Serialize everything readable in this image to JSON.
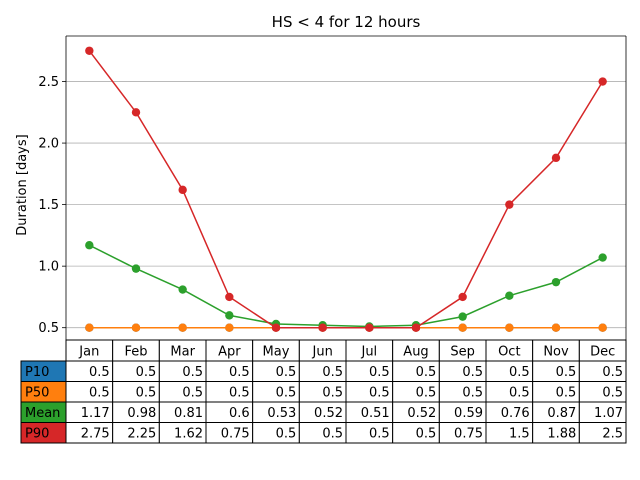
{
  "chart_data": {
    "type": "line",
    "title": "HS < 4 for 12 hours",
    "xlabel": "",
    "ylabel": "Duration [days]",
    "categories": [
      "Jan",
      "Feb",
      "Mar",
      "Apr",
      "May",
      "Jun",
      "Jul",
      "Aug",
      "Sep",
      "Oct",
      "Nov",
      "Dec"
    ],
    "ylim": [
      0.4,
      2.87
    ],
    "yticks": [
      0.5,
      1.0,
      1.5,
      2.0,
      2.5
    ],
    "ytick_labels": [
      "0.5",
      "1.0",
      "1.5",
      "2.0",
      "2.5"
    ],
    "grid": "horizontal",
    "legend": "table-below",
    "series": [
      {
        "name": "P10",
        "color": "#1f77b4",
        "values": [
          0.5,
          0.5,
          0.5,
          0.5,
          0.5,
          0.5,
          0.5,
          0.5,
          0.5,
          0.5,
          0.5,
          0.5
        ],
        "labels": [
          "0.5",
          "0.5",
          "0.5",
          "0.5",
          "0.5",
          "0.5",
          "0.5",
          "0.5",
          "0.5",
          "0.5",
          "0.5",
          "0.5"
        ]
      },
      {
        "name": "P50",
        "color": "#ff7f0e",
        "values": [
          0.5,
          0.5,
          0.5,
          0.5,
          0.5,
          0.5,
          0.5,
          0.5,
          0.5,
          0.5,
          0.5,
          0.5
        ],
        "labels": [
          "0.5",
          "0.5",
          "0.5",
          "0.5",
          "0.5",
          "0.5",
          "0.5",
          "0.5",
          "0.5",
          "0.5",
          "0.5",
          "0.5"
        ]
      },
      {
        "name": "Mean",
        "color": "#2ca02c",
        "values": [
          1.17,
          0.98,
          0.81,
          0.6,
          0.53,
          0.52,
          0.51,
          0.52,
          0.59,
          0.76,
          0.87,
          1.07
        ],
        "labels": [
          "1.17",
          "0.98",
          "0.81",
          "0.6",
          "0.53",
          "0.52",
          "0.51",
          "0.52",
          "0.59",
          "0.76",
          "0.87",
          "1.07"
        ]
      },
      {
        "name": "P90",
        "color": "#d62728",
        "values": [
          2.75,
          2.25,
          1.62,
          0.75,
          0.5,
          0.5,
          0.5,
          0.5,
          0.75,
          1.5,
          1.88,
          2.5
        ],
        "labels": [
          "2.75",
          "2.25",
          "1.62",
          "0.75",
          "0.5",
          "0.5",
          "0.5",
          "0.5",
          "0.75",
          "1.5",
          "1.88",
          "2.5"
        ]
      }
    ]
  }
}
